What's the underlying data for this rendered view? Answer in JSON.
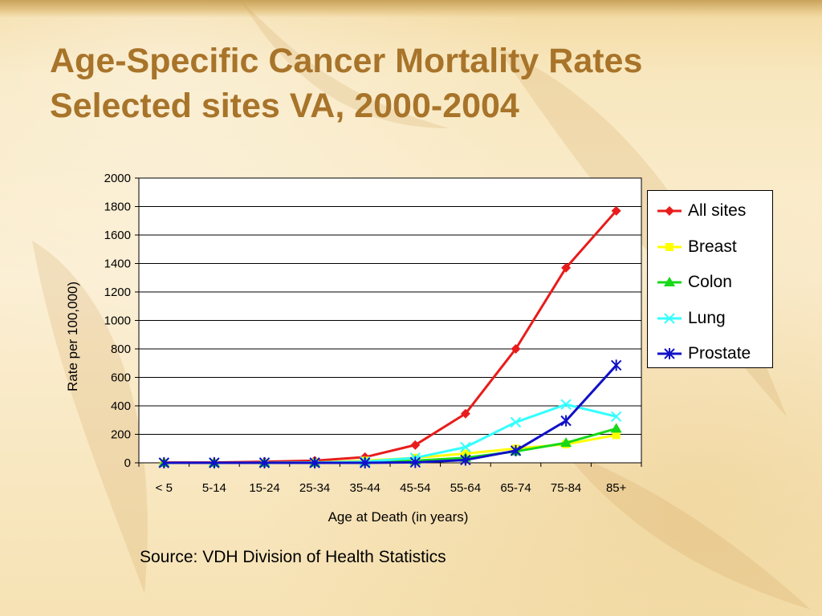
{
  "slide": {
    "title_line1": "Age-Specific Cancer Mortality Rates",
    "title_line2": "Selected sites VA, 2000-2004",
    "source": "Source: VDH Division of Health Statistics"
  },
  "chart_data": {
    "type": "line",
    "xlabel": "Age at Death (in years)",
    "ylabel": "Rate per 100,000)",
    "ylim": [
      0,
      2000
    ],
    "yticks": [
      0,
      200,
      400,
      600,
      800,
      1000,
      1200,
      1400,
      1600,
      1800,
      2000
    ],
    "categories": [
      "< 5",
      "5-14",
      "15-24",
      "25-34",
      "35-44",
      "45-54",
      "55-64",
      "65-74",
      "75-84",
      "85+"
    ],
    "grid": "horizontal",
    "legend": "right",
    "series": [
      {
        "name": "All sites",
        "color": "#e81c1c",
        "marker": "diamond",
        "values": [
          2,
          2,
          8,
          15,
          40,
          125,
          345,
          800,
          1370,
          1770
        ]
      },
      {
        "name": "Breast",
        "color": "#ffff00",
        "marker": "square",
        "values": [
          0,
          0,
          0,
          2,
          15,
          35,
          65,
          100,
          130,
          195
        ]
      },
      {
        "name": "Colon",
        "color": "#18d818",
        "marker": "triangle",
        "values": [
          0,
          0,
          0,
          1,
          5,
          15,
          35,
          80,
          140,
          240
        ]
      },
      {
        "name": "Lung",
        "color": "#33ffff",
        "marker": "x",
        "values": [
          0,
          0,
          1,
          2,
          8,
          35,
          110,
          285,
          410,
          325
        ]
      },
      {
        "name": "Prostate",
        "color": "#1010c8",
        "marker": "star",
        "values": [
          0,
          0,
          0,
          0,
          0,
          3,
          20,
          85,
          295,
          685
        ]
      }
    ]
  }
}
